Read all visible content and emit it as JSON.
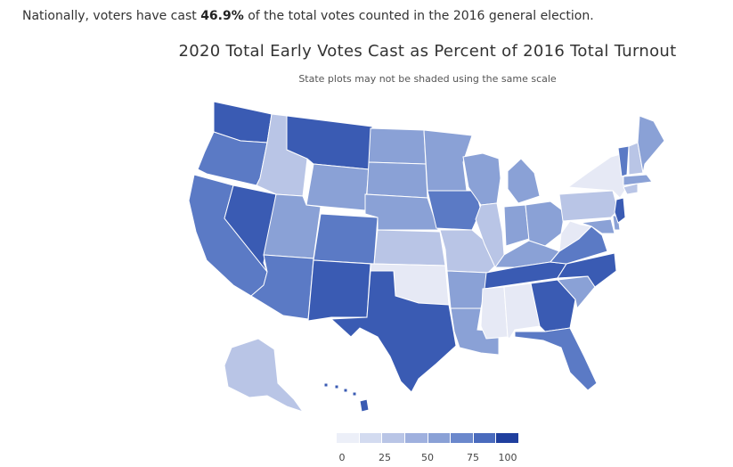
{
  "headline": {
    "prefix": "Nationally, voters have cast ",
    "value": "46.9%",
    "suffix": " of the total votes counted in the 2016 general election."
  },
  "title": "2020 Total Early Votes Cast as Percent of 2016 Total Turnout",
  "subtitle": "State plots may not be shaded using the same scale",
  "colors": {
    "scale": [
      "#e6e9f5",
      "#b9c5e6",
      "#8aa1d6",
      "#5b7ac5",
      "#3a5bb3",
      "#1f3f9e"
    ],
    "border": "#ffffff"
  },
  "legend": {
    "ticks": [
      "0",
      "25",
      "50",
      "75",
      "100"
    ]
  },
  "states": [
    {
      "name": "WA",
      "level": 4
    },
    {
      "name": "OR",
      "level": 3
    },
    {
      "name": "CA",
      "level": 3
    },
    {
      "name": "NV",
      "level": 4
    },
    {
      "name": "ID",
      "level": 1
    },
    {
      "name": "MT",
      "level": 4
    },
    {
      "name": "WY",
      "level": 2
    },
    {
      "name": "UT",
      "level": 2
    },
    {
      "name": "AZ",
      "level": 3
    },
    {
      "name": "CO",
      "level": 3
    },
    {
      "name": "NM",
      "level": 4
    },
    {
      "name": "ND",
      "level": 2
    },
    {
      "name": "SD",
      "level": 2
    },
    {
      "name": "NE",
      "level": 2
    },
    {
      "name": "KS",
      "level": 1
    },
    {
      "name": "OK",
      "level": 0
    },
    {
      "name": "TX",
      "level": 4
    },
    {
      "name": "MN",
      "level": 2
    },
    {
      "name": "IA",
      "level": 3
    },
    {
      "name": "MO",
      "level": 1
    },
    {
      "name": "AR",
      "level": 2
    },
    {
      "name": "LA",
      "level": 2
    },
    {
      "name": "WI",
      "level": 2
    },
    {
      "name": "IL",
      "level": 1
    },
    {
      "name": "MI",
      "level": 2
    },
    {
      "name": "IN",
      "level": 2
    },
    {
      "name": "OH",
      "level": 2
    },
    {
      "name": "KY",
      "level": 2
    },
    {
      "name": "TN",
      "level": 4
    },
    {
      "name": "MS",
      "level": 0
    },
    {
      "name": "AL",
      "level": 0
    },
    {
      "name": "GA",
      "level": 4
    },
    {
      "name": "FL",
      "level": 3
    },
    {
      "name": "SC",
      "level": 2
    },
    {
      "name": "NC",
      "level": 4
    },
    {
      "name": "VA",
      "level": 3
    },
    {
      "name": "WV",
      "level": 0
    },
    {
      "name": "PA",
      "level": 1
    },
    {
      "name": "NY",
      "level": 0
    },
    {
      "name": "VT",
      "level": 3
    },
    {
      "name": "NH",
      "level": 1
    },
    {
      "name": "ME",
      "level": 2
    },
    {
      "name": "MA",
      "level": 2
    },
    {
      "name": "CT",
      "level": 1
    },
    {
      "name": "NJ",
      "level": 4
    },
    {
      "name": "DE",
      "level": 2
    },
    {
      "name": "MD",
      "level": 2
    },
    {
      "name": "AK",
      "level": 1
    },
    {
      "name": "HI",
      "level": 4
    }
  ]
}
